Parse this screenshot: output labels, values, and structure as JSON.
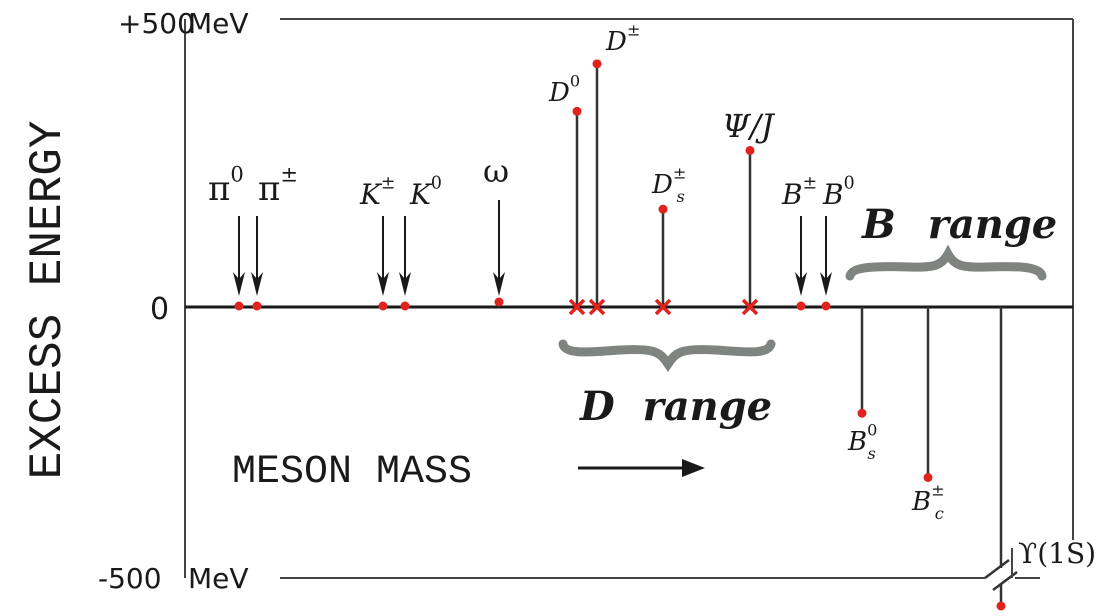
{
  "axis": {
    "ylabel": "EXCESS ENERGY",
    "top_label": "+500",
    "top_unit": "MeV",
    "zero_label": "0",
    "bottom_label": "-500",
    "bottom_unit": "MeV",
    "range_mev": [
      -500,
      500
    ]
  },
  "arrow_text": "MESON MASS",
  "ranges": [
    {
      "id": "d",
      "word1": "D",
      "word2": "range"
    },
    {
      "id": "b",
      "word1": "B",
      "word2": "range"
    }
  ],
  "mesons": [
    {
      "id": "pi0",
      "base": "π",
      "sup": "0",
      "sub": "",
      "energy_mev": 0,
      "marker": "arrow"
    },
    {
      "id": "pipm",
      "base": "π",
      "sup": "±",
      "sub": "",
      "energy_mev": 0,
      "marker": "arrow"
    },
    {
      "id": "kpm",
      "base": "K",
      "sup": "±",
      "sub": "",
      "energy_mev": 0,
      "marker": "arrow"
    },
    {
      "id": "k0",
      "base": "K",
      "sup": "0",
      "sub": "",
      "energy_mev": 0,
      "marker": "arrow"
    },
    {
      "id": "omega",
      "base": "ω",
      "sup": "",
      "sub": "",
      "energy_mev": 5,
      "marker": "arrow"
    },
    {
      "id": "d0",
      "base": "D",
      "sup": "0",
      "sub": "",
      "energy_mev": 350,
      "marker": "stem-x"
    },
    {
      "id": "dpm",
      "base": "D",
      "sup": "±",
      "sub": "",
      "energy_mev": 435,
      "marker": "stem-x"
    },
    {
      "id": "ds",
      "base": "D",
      "sup": "±",
      "sub": "s",
      "energy_mev": 175,
      "marker": "stem-x"
    },
    {
      "id": "psi",
      "base": "Ψ/J",
      "sup": "",
      "sub": "",
      "energy_mev": 280,
      "marker": "stem-x"
    },
    {
      "id": "bpm",
      "base": "B",
      "sup": "±",
      "sub": "",
      "energy_mev": 0,
      "marker": "arrow"
    },
    {
      "id": "b0",
      "base": "B",
      "sup": "0",
      "sub": "",
      "energy_mev": 0,
      "marker": "arrow"
    },
    {
      "id": "bs",
      "base": "B",
      "sup": "0",
      "sub": "s",
      "energy_mev": -190,
      "marker": "stem-down"
    },
    {
      "id": "bc",
      "base": "B",
      "sup": "±",
      "sub": "c",
      "energy_mev": -305,
      "marker": "stem-down"
    },
    {
      "id": "upsilon",
      "base": "ϒ(1S)",
      "sup": "",
      "sub": "",
      "energy_mev": -530,
      "marker": "broken-stem"
    }
  ],
  "colors": {
    "point": "#e0231c",
    "line": "#1a1a1a",
    "frame": "#444444",
    "brace": "#7f8481"
  }
}
